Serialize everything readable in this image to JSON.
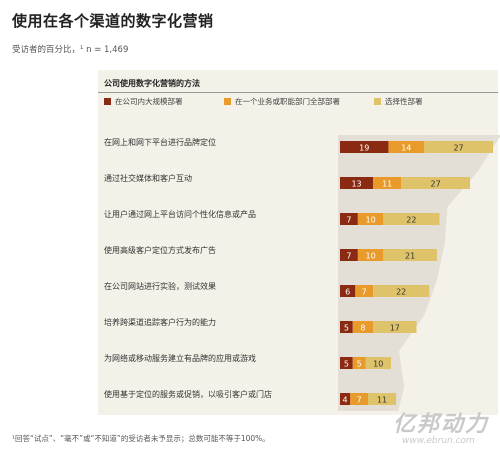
{
  "chart_data": {
    "type": "bar",
    "title": "使用在各个渠道的数字化营销",
    "subtitle": "受访者的百分比，¹ n = 1,469",
    "section_title": "公司使用数字化营销的方法",
    "categories": [
      "在网上和网下平台进行品牌定位",
      "通过社交媒体和客户互动",
      "让用户通过网上平台访问个性化信息或产品",
      "使用高级客户定位方式发布广告",
      "在公司网站进行实验，测试效果",
      "培养跨渠道追踪客户行为的能力",
      "为网络或移动服务建立有品牌的应用或游戏",
      "使用基于定位的服务或促销，以吸引客户或门店"
    ],
    "series": [
      {
        "name": "在公司内大规模部署",
        "color": "#8b2a12",
        "values": [
          19,
          13,
          7,
          7,
          6,
          5,
          5,
          4
        ]
      },
      {
        "name": "在一个业务或职能部门全部部署",
        "color": "#e89a2a",
        "values": [
          14,
          11,
          10,
          10,
          7,
          8,
          5,
          7
        ]
      },
      {
        "name": "选择性部署",
        "color": "#dfc36a",
        "values": [
          27,
          27,
          22,
          21,
          22,
          17,
          10,
          11
        ]
      }
    ],
    "stacked": true,
    "orientation": "horizontal",
    "footnote": "¹回答“试点”、“毫不”或“不知道”的受访者未予显示；总数可能不等于100%。"
  },
  "watermark": {
    "text": "亿邦动力",
    "url": "www.ebrun.com"
  }
}
